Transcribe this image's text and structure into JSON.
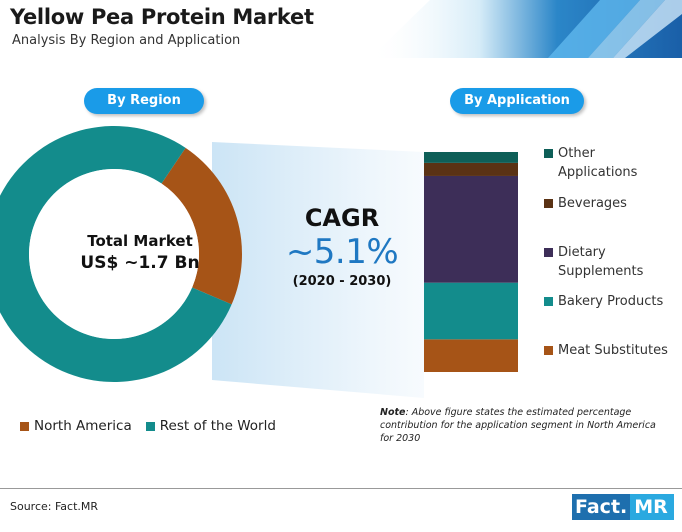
{
  "header": {
    "title": "Yellow Pea Protein Market",
    "subtitle": "Analysis By Region and Application"
  },
  "colors": {
    "teal": "#138c8c",
    "orange": "#a65417",
    "dark_teal": "#0e5f58",
    "brown": "#5a3214",
    "purple": "#3d2e58",
    "pill_blue": "#1a9be8",
    "cagr_blue": "#1f78c2"
  },
  "region": {
    "pill_label": "By Region",
    "center_line1": "Total Market",
    "center_line2": "US$ ~1.7 Bn"
  },
  "application": {
    "pill_label": "By Application"
  },
  "cagr": {
    "label": "CAGR",
    "value": "~5.1%",
    "period": "(2020 - 2030)"
  },
  "note": {
    "prefix": "Note",
    "text": ": Above figure states the estimated percentage contribution for the application segment in North America for 2030"
  },
  "footer": {
    "source": "Source: Fact.MR",
    "brand_part1": "Fact.",
    "brand_part2": "MR"
  },
  "chart_data": [
    {
      "type": "pie",
      "variant": "donut",
      "slices": [
        {
          "name": "North America",
          "value": 22,
          "color": "#a65417"
        },
        {
          "name": "Rest of the World",
          "value": 78,
          "color": "#138c8c"
        }
      ],
      "legend_placement": "bottom-left"
    },
    {
      "type": "bar",
      "variant": "single-stacked",
      "segments": [
        {
          "name": "Meat Substitutes",
          "value": 15,
          "color": "#a65417"
        },
        {
          "name": "Bakery Products",
          "value": 26,
          "color": "#138c8c"
        },
        {
          "name": "Dietary Supplements",
          "value": 49,
          "color": "#3d2e58"
        },
        {
          "name": "Beverages",
          "value": 6,
          "color": "#5a3214"
        },
        {
          "name": "Other Applications",
          "value": 5,
          "color": "#0e5f58"
        }
      ],
      "legend_placement": "right"
    }
  ]
}
